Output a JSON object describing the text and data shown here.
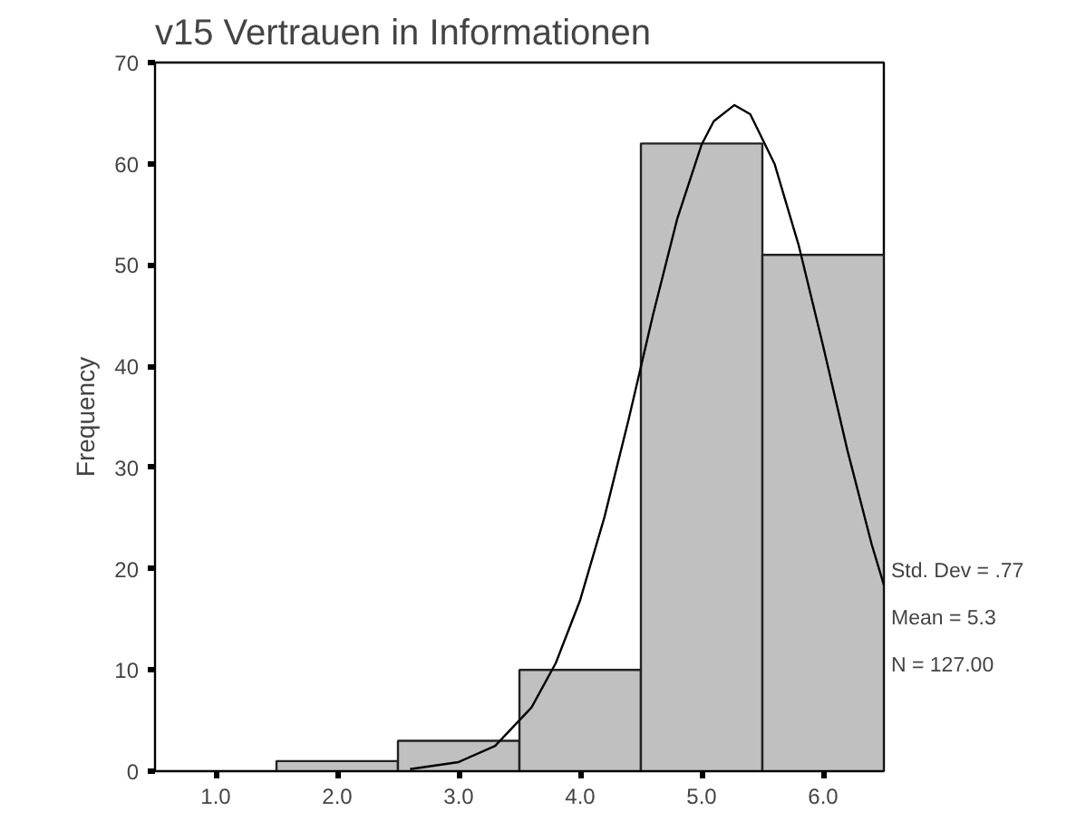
{
  "chart_data": {
    "type": "histogram",
    "title": "v15 Vertrauen in Informationen",
    "ylabel": "Frequency",
    "bins": [
      0.5,
      1.5,
      2.5,
      3.5,
      4.5,
      5.5,
      6.5
    ],
    "values": [
      0,
      1,
      3,
      10,
      62,
      51
    ],
    "color": "#c0c0c0",
    "series": [
      {
        "type": "line",
        "color": "#000000",
        "x": [
          2.6,
          3.0,
          3.3,
          3.6,
          3.8,
          4.0,
          4.2,
          4.4,
          4.6,
          4.8,
          5.0,
          5.1,
          5.27,
          5.4,
          5.6,
          5.8,
          6.0,
          6.2,
          6.4,
          6.5
        ],
        "values": [
          0.2,
          0.9,
          2.5,
          6.3,
          10.7,
          16.9,
          25.1,
          34.8,
          45.1,
          54.6,
          61.9,
          64.2,
          65.8,
          64.9,
          60.0,
          51.9,
          42.0,
          31.7,
          22.4,
          18.4
        ]
      }
    ],
    "xlim": [
      0.5,
      6.5
    ],
    "ylim": [
      0,
      70
    ],
    "xticks": [
      {
        "value": 1,
        "label": "1.0"
      },
      {
        "value": 2,
        "label": "2.0"
      },
      {
        "value": 3,
        "label": "3.0"
      },
      {
        "value": 4,
        "label": "4.0"
      },
      {
        "value": 5,
        "label": "5.0"
      },
      {
        "value": 6,
        "label": "6.0"
      }
    ],
    "yticks": [
      0,
      10,
      20,
      30,
      40,
      50,
      60,
      70
    ],
    "grid": false,
    "annotations": [
      "Std. Dev = .77",
      "Mean = 5.3",
      "N = 127.00"
    ]
  }
}
